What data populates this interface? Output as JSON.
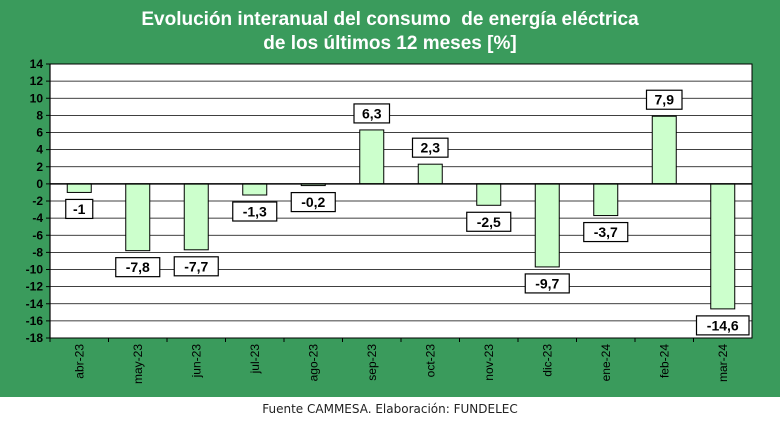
{
  "title_line1": "Evolución interanual del consumo  de energía eléctrica",
  "title_line2": "de los últimos 12 meses [%]",
  "footer": "Fuente CAMMESA. Elaboración: FUNDELEC",
  "colors": {
    "background": "#3a9b5c",
    "plot": "#ffffff",
    "bar_fill": "#ccffcc",
    "bar_stroke": "#000000",
    "grid": "#000000",
    "text": "#000000"
  },
  "chart_data": {
    "type": "bar",
    "title": "Evolución interanual del consumo  de energía eléctrica de los últimos 12 meses [%]",
    "xlabel": "",
    "ylabel": "",
    "categories": [
      "abr-23",
      "may-23",
      "jun-23",
      "jul-23",
      "ago-23",
      "sep-23",
      "oct-23",
      "nov-23",
      "dic-23",
      "ene-24",
      "feb-24",
      "mar-24"
    ],
    "values": [
      -1,
      -7.8,
      -7.7,
      -1.3,
      -0.2,
      6.3,
      2.3,
      -2.5,
      -9.7,
      -3.7,
      7.9,
      -14.6
    ],
    "data_labels": [
      "-1",
      "-7,8",
      "-7,7",
      "-1,3",
      "-0,2",
      "6,3",
      "2,3",
      "-2,5",
      "-9,7",
      "-3,7",
      "7,9",
      "-14,6"
    ],
    "ylim": [
      -18,
      14
    ],
    "yticks": [
      14,
      12,
      10,
      8,
      6,
      4,
      2,
      0,
      -2,
      -4,
      -6,
      -8,
      -10,
      -12,
      -14,
      -16,
      -18
    ],
    "grid": true,
    "legend": "none"
  }
}
